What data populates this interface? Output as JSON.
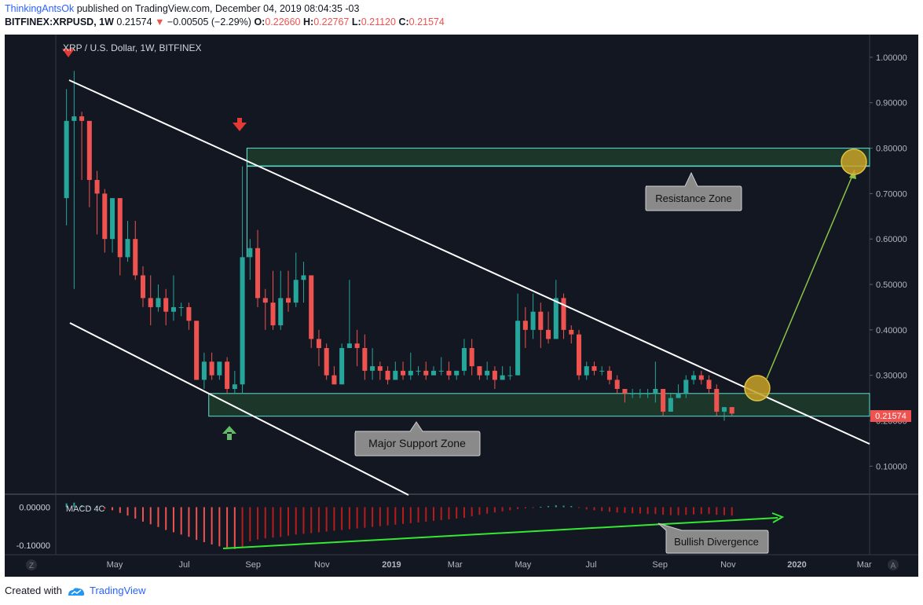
{
  "header": {
    "author": "ThinkingAntsOk",
    "published": "published on TradingView.com, December 04, 2019 08:04:35 -03",
    "symbol": "BITFINEX:XRPUSD, 1W",
    "last": "0.21574",
    "change": "−0.00505 (−2.29%)",
    "o_label": "O:",
    "o": "0.22660",
    "h_label": "H:",
    "h": "0.22767",
    "l_label": "L:",
    "l": "0.21120",
    "c_label": "C:",
    "c": "0.21574"
  },
  "footer": {
    "created": "Created with",
    "brand": "TradingView"
  },
  "colors": {
    "background": "#131722",
    "up": "#26a69a",
    "down": "#ef5350",
    "zone_fill": "#1f3d2a",
    "zone_border": "#5ee0d0",
    "trend": "#ffffff",
    "macd_line": "#34e834",
    "projection": "#8bc34a",
    "circle": "#c9a227"
  },
  "chart_data": {
    "type": "candlestick",
    "title": "XRP / U.S. Dollar, 1W, BITFINEX",
    "ylim": [
      0.04,
      1.05
    ],
    "y_ticks": [
      "1.00000",
      "0.90000",
      "0.80000",
      "0.70000",
      "0.60000",
      "0.50000",
      "0.40000",
      "0.30000",
      "0.20000",
      "0.10000"
    ],
    "y_tick_values": [
      1.0,
      0.9,
      0.8,
      0.7,
      0.6,
      0.5,
      0.4,
      0.3,
      0.2,
      0.1
    ],
    "x_ticks": [
      "May",
      "Jul",
      "Sep",
      "Nov",
      "2019",
      "Mar",
      "May",
      "Jul",
      "Sep",
      "Nov",
      "2020",
      "Mar"
    ],
    "x_tick_weeks": [
      6.3,
      15.4,
      24.4,
      33.4,
      42.5,
      50.8,
      59.7,
      68.6,
      77.6,
      86.5,
      95.5,
      104.3
    ],
    "x_range_weeks": [
      -1.4,
      105.0
    ],
    "start_date": "2018-04-02",
    "last_price_label": "0.21574",
    "candles": [
      [
        0.69,
        0.86,
        0.93,
        0.63
      ],
      [
        0.86,
        0.87,
        0.97,
        0.49
      ],
      [
        0.87,
        0.86,
        0.88,
        0.73
      ],
      [
        0.86,
        0.73,
        0.86,
        0.67
      ],
      [
        0.73,
        0.7,
        0.75,
        0.61
      ],
      [
        0.7,
        0.6,
        0.71,
        0.57
      ],
      [
        0.6,
        0.69,
        0.69,
        0.57
      ],
      [
        0.69,
        0.56,
        0.69,
        0.52
      ],
      [
        0.56,
        0.6,
        0.64,
        0.55
      ],
      [
        0.6,
        0.52,
        0.64,
        0.51
      ],
      [
        0.52,
        0.47,
        0.54,
        0.45
      ],
      [
        0.47,
        0.45,
        0.52,
        0.41
      ],
      [
        0.45,
        0.47,
        0.5,
        0.44
      ],
      [
        0.47,
        0.44,
        0.49,
        0.41
      ],
      [
        0.44,
        0.45,
        0.52,
        0.42
      ],
      [
        0.45,
        0.45,
        0.46,
        0.43
      ],
      [
        0.45,
        0.42,
        0.46,
        0.4
      ],
      [
        0.42,
        0.29,
        0.42,
        0.29
      ],
      [
        0.29,
        0.33,
        0.35,
        0.27
      ],
      [
        0.33,
        0.3,
        0.35,
        0.29
      ],
      [
        0.3,
        0.33,
        0.33,
        0.29
      ],
      [
        0.33,
        0.27,
        0.34,
        0.26
      ],
      [
        0.27,
        0.28,
        0.31,
        0.26
      ],
      [
        0.28,
        0.56,
        0.76,
        0.26
      ],
      [
        0.56,
        0.58,
        0.6,
        0.51
      ],
      [
        0.58,
        0.47,
        0.62,
        0.45
      ],
      [
        0.47,
        0.46,
        0.49,
        0.4
      ],
      [
        0.46,
        0.41,
        0.53,
        0.4
      ],
      [
        0.41,
        0.47,
        0.53,
        0.4
      ],
      [
        0.47,
        0.46,
        0.53,
        0.44
      ],
      [
        0.46,
        0.51,
        0.57,
        0.45
      ],
      [
        0.51,
        0.52,
        0.55,
        0.46
      ],
      [
        0.52,
        0.38,
        0.52,
        0.36
      ],
      [
        0.38,
        0.36,
        0.4,
        0.32
      ],
      [
        0.36,
        0.3,
        0.37,
        0.29
      ],
      [
        0.3,
        0.28,
        0.32,
        0.28
      ],
      [
        0.28,
        0.36,
        0.37,
        0.28
      ],
      [
        0.36,
        0.37,
        0.51,
        0.36
      ],
      [
        0.37,
        0.36,
        0.4,
        0.32
      ],
      [
        0.36,
        0.31,
        0.39,
        0.29
      ],
      [
        0.31,
        0.32,
        0.36,
        0.29
      ],
      [
        0.32,
        0.31,
        0.33,
        0.29
      ],
      [
        0.31,
        0.29,
        0.32,
        0.28
      ],
      [
        0.29,
        0.31,
        0.33,
        0.29
      ],
      [
        0.31,
        0.3,
        0.33,
        0.29
      ],
      [
        0.3,
        0.31,
        0.35,
        0.29
      ],
      [
        0.31,
        0.31,
        0.32,
        0.3
      ],
      [
        0.31,
        0.3,
        0.33,
        0.29
      ],
      [
        0.3,
        0.31,
        0.32,
        0.3
      ],
      [
        0.31,
        0.31,
        0.34,
        0.3
      ],
      [
        0.31,
        0.3,
        0.33,
        0.29
      ],
      [
        0.3,
        0.31,
        0.31,
        0.29
      ],
      [
        0.31,
        0.36,
        0.38,
        0.3
      ],
      [
        0.36,
        0.32,
        0.38,
        0.3
      ],
      [
        0.32,
        0.3,
        0.32,
        0.29
      ],
      [
        0.3,
        0.31,
        0.33,
        0.29
      ],
      [
        0.31,
        0.29,
        0.32,
        0.27
      ],
      [
        0.29,
        0.3,
        0.32,
        0.29
      ],
      [
        0.3,
        0.3,
        0.32,
        0.29
      ],
      [
        0.3,
        0.42,
        0.48,
        0.3
      ],
      [
        0.42,
        0.4,
        0.45,
        0.36
      ],
      [
        0.4,
        0.44,
        0.48,
        0.38
      ],
      [
        0.44,
        0.4,
        0.46,
        0.36
      ],
      [
        0.4,
        0.38,
        0.44,
        0.37
      ],
      [
        0.38,
        0.47,
        0.51,
        0.38
      ],
      [
        0.47,
        0.4,
        0.48,
        0.38
      ],
      [
        0.4,
        0.39,
        0.41,
        0.37
      ],
      [
        0.39,
        0.3,
        0.4,
        0.29
      ],
      [
        0.3,
        0.32,
        0.33,
        0.29
      ],
      [
        0.32,
        0.31,
        0.33,
        0.3
      ],
      [
        0.31,
        0.31,
        0.32,
        0.3
      ],
      [
        0.31,
        0.29,
        0.32,
        0.28
      ],
      [
        0.29,
        0.27,
        0.3,
        0.26
      ],
      [
        0.27,
        0.26,
        0.27,
        0.24
      ],
      [
        0.26,
        0.26,
        0.27,
        0.25
      ],
      [
        0.26,
        0.26,
        0.27,
        0.25
      ],
      [
        0.26,
        0.26,
        0.27,
        0.25
      ],
      [
        0.26,
        0.27,
        0.33,
        0.24
      ],
      [
        0.27,
        0.22,
        0.27,
        0.21
      ],
      [
        0.22,
        0.25,
        0.26,
        0.22
      ],
      [
        0.25,
        0.26,
        0.28,
        0.25
      ],
      [
        0.26,
        0.29,
        0.3,
        0.25
      ],
      [
        0.29,
        0.3,
        0.31,
        0.28
      ],
      [
        0.3,
        0.29,
        0.31,
        0.28
      ],
      [
        0.29,
        0.27,
        0.3,
        0.26
      ],
      [
        0.27,
        0.22,
        0.28,
        0.21
      ],
      [
        0.22,
        0.23,
        0.23,
        0.2
      ],
      [
        0.23,
        0.21574,
        0.22767,
        0.2112
      ]
    ],
    "macd": {
      "name": "MACD 4C",
      "ylim": [
        -0.125,
        0.03
      ],
      "y_ticks": [
        "0.00000",
        "-0.10000"
      ],
      "y_tick_values": [
        0.0,
        -0.1
      ],
      "histogram": [
        0.01,
        0.012,
        0.005,
        0.003,
        0.001,
        -0.004,
        -0.008,
        -0.015,
        -0.022,
        -0.03,
        -0.038,
        -0.045,
        -0.052,
        -0.06,
        -0.066,
        -0.072,
        -0.078,
        -0.086,
        -0.092,
        -0.098,
        -0.103,
        -0.106,
        -0.11,
        -0.104,
        -0.09,
        -0.085,
        -0.082,
        -0.08,
        -0.078,
        -0.075,
        -0.072,
        -0.07,
        -0.068,
        -0.066,
        -0.064,
        -0.062,
        -0.06,
        -0.058,
        -0.056,
        -0.054,
        -0.052,
        -0.05,
        -0.048,
        -0.046,
        -0.044,
        -0.042,
        -0.04,
        -0.038,
        -0.036,
        -0.034,
        -0.032,
        -0.03,
        -0.028,
        -0.024,
        -0.02,
        -0.017,
        -0.014,
        -0.011,
        -0.008,
        -0.005,
        -0.003,
        -0.001,
        0.001,
        0.003,
        0.005,
        0.004,
        0.003,
        -0.002,
        -0.006,
        -0.008,
        -0.01,
        -0.012,
        -0.014,
        -0.015,
        -0.016,
        -0.017,
        -0.018,
        -0.018,
        -0.02,
        -0.021,
        -0.021,
        -0.02,
        -0.019,
        -0.018,
        -0.018,
        -0.02,
        -0.021,
        -0.022
      ]
    },
    "annotations": {
      "resistance_label": "Resistance Zone",
      "support_label": "Major Support Zone",
      "divergence_label": "Bullish Divergence",
      "resistance_zone": [
        0.76,
        0.8
      ],
      "support_zone": [
        0.21,
        0.26
      ]
    }
  }
}
